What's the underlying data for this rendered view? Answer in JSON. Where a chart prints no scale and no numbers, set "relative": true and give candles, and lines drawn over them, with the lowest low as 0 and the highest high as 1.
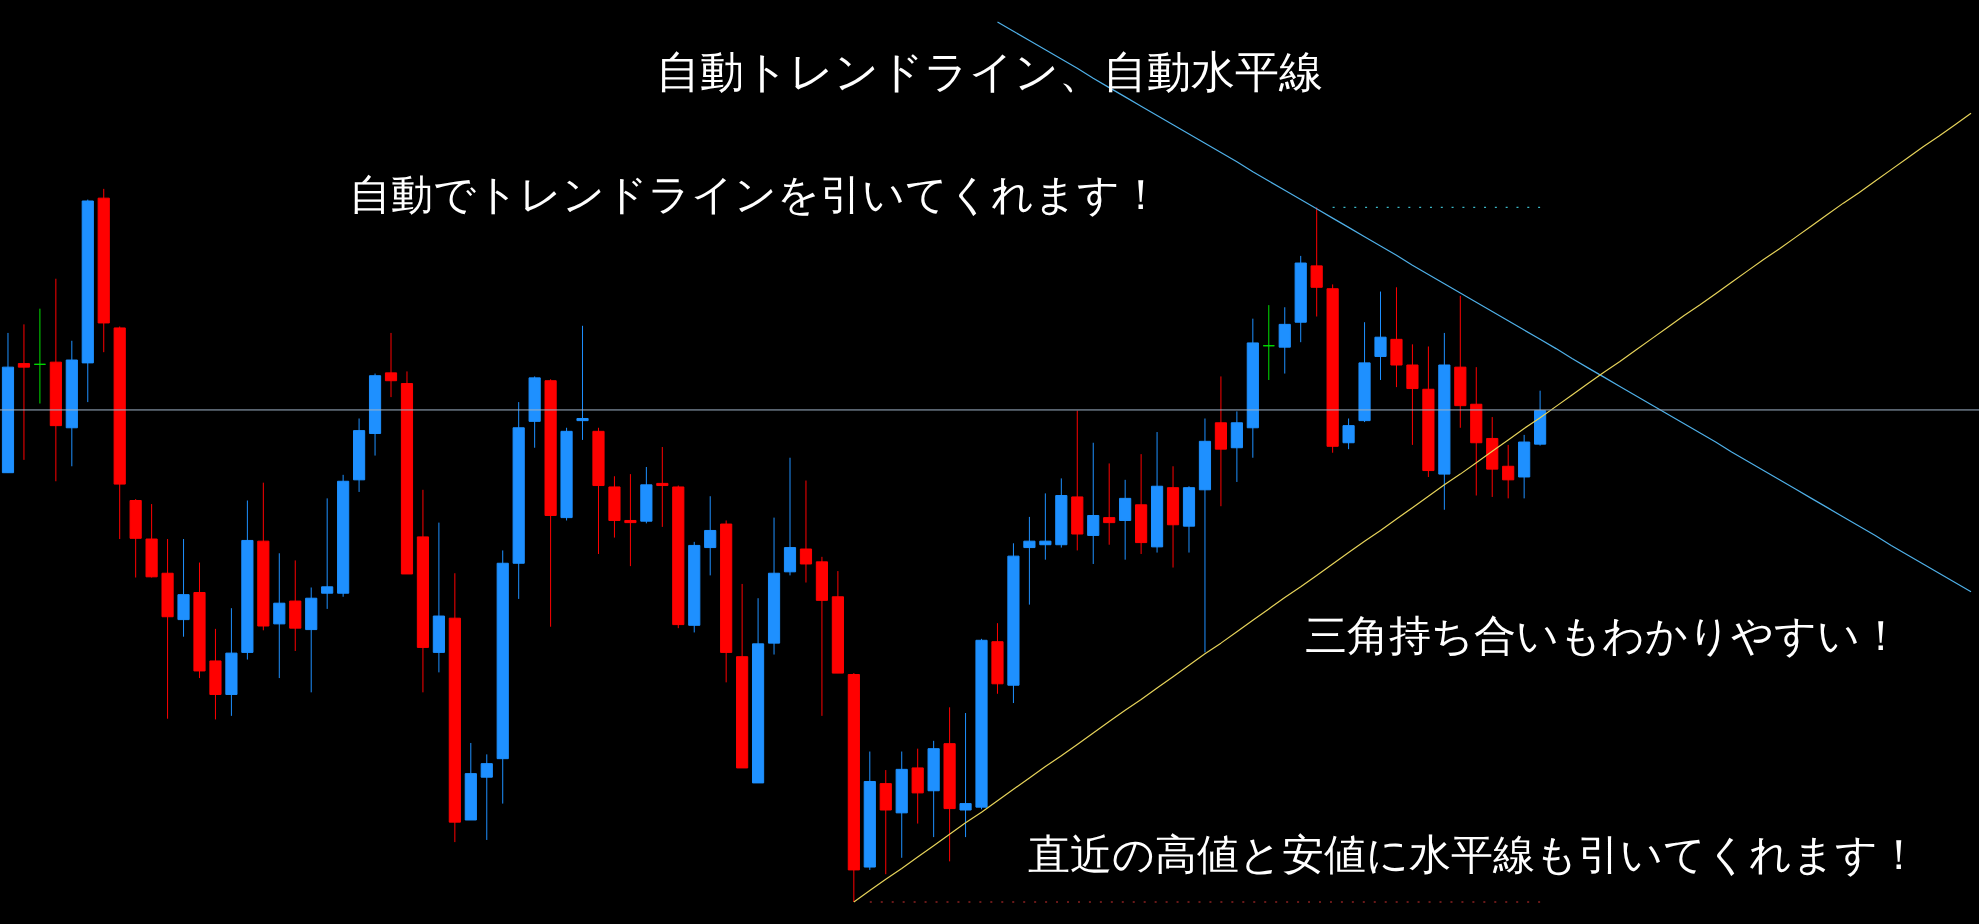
{
  "chart_data": {
    "type": "candlestick",
    "title": "自動トレンドライン、自動水平線",
    "relative": true,
    "annotations": [
      "自動でトレンドラインを引いてくれます！",
      "三角持ち合いもわかりやすい！",
      "直近の高値と安値に水平線も引いてくれます！"
    ],
    "categories": [
      null,
      null,
      null,
      null,
      null,
      null,
      null,
      null,
      null,
      null,
      null,
      null,
      null,
      null,
      null,
      null,
      null,
      null,
      null,
      null,
      null,
      null,
      null,
      null,
      null,
      null,
      null,
      null,
      null,
      null,
      null,
      null,
      null,
      null,
      null,
      null,
      null,
      null,
      null,
      null,
      null,
      null,
      null,
      null,
      null,
      null,
      null,
      null,
      null,
      null,
      null,
      null,
      null,
      null,
      null,
      null,
      null,
      null,
      null,
      null,
      null,
      null,
      null,
      null,
      null,
      null,
      null,
      null,
      null,
      null,
      null,
      null,
      null,
      null,
      null,
      null,
      null,
      null,
      null,
      null,
      null,
      null,
      null,
      null,
      null,
      null,
      null,
      null,
      null,
      null,
      null,
      null,
      null,
      null,
      null,
      null,
      null,
      null,
      null,
      null,
      null,
      null,
      null,
      null,
      null,
      null,
      null,
      null,
      null,
      null,
      null,
      null,
      null,
      null,
      null,
      null,
      null,
      null,
      null,
      null,
      null,
      null,
      null,
      null
    ],
    "ohlc": [
      [
        0.602,
        0.798,
        0.602,
        0.75
      ],
      [
        0.755,
        0.81,
        0.62,
        0.75
      ],
      [
        0.754,
        0.832,
        0.699,
        0.754
      ],
      [
        0.757,
        0.874,
        0.59,
        0.668
      ],
      [
        0.665,
        0.787,
        0.611,
        0.76
      ],
      [
        0.756,
        0.985,
        0.701,
        0.983
      ],
      [
        0.987,
        1,
        0.771,
        0.812
      ],
      [
        0.805,
        0.807,
        0.509,
        0.586
      ],
      [
        0.563,
        0.565,
        0.455,
        0.51
      ],
      [
        0.509,
        0.558,
        0.455,
        0.456
      ],
      [
        0.461,
        0.509,
        0.257,
        0.4
      ],
      [
        0.396,
        0.509,
        0.372,
        0.431
      ],
      [
        0.434,
        0.476,
        0.314,
        0.324
      ],
      [
        0.338,
        0.383,
        0.256,
        0.291
      ],
      [
        0.291,
        0.412,
        0.261,
        0.349
      ],
      [
        0.35,
        0.563,
        0.34,
        0.507
      ],
      [
        0.506,
        0.588,
        0.381,
        0.387
      ],
      [
        0.39,
        0.489,
        0.314,
        0.419
      ],
      [
        0.422,
        0.479,
        0.352,
        0.384
      ],
      [
        0.382,
        0.441,
        0.294,
        0.426
      ],
      [
        0.433,
        0.566,
        0.411,
        0.442
      ],
      [
        0.433,
        0.599,
        0.428,
        0.59
      ],
      [
        0.592,
        0.678,
        0.575,
        0.661
      ],
      [
        0.657,
        0.741,
        0.626,
        0.738
      ],
      [
        0.742,
        0.798,
        0.708,
        0.731
      ],
      [
        0.727,
        0.744,
        0.46,
        0.46
      ],
      [
        0.512,
        0.578,
        0.294,
        0.357
      ],
      [
        0.35,
        0.532,
        0.322,
        0.401
      ],
      [
        0.398,
        0.461,
        0.084,
        0.112
      ],
      [
        0.115,
        0.223,
        0.115,
        0.18
      ],
      [
        0.175,
        0.207,
        0.087,
        0.194
      ],
      [
        0.201,
        0.493,
        0.138,
        0.475
      ],
      [
        0.475,
        0.701,
        0.425,
        0.665
      ],
      [
        0.674,
        0.737,
        0.637,
        0.735
      ],
      [
        0.731,
        0.733,
        0.386,
        0.542
      ],
      [
        0.539,
        0.665,
        0.535,
        0.66
      ],
      [
        0.675,
        0.808,
        0.648,
        0.678
      ],
      [
        0.66,
        0.665,
        0.488,
        0.584
      ],
      [
        0.582,
        0.597,
        0.511,
        0.535
      ],
      [
        0.535,
        0.6,
        0.471,
        0.532
      ],
      [
        0.534,
        0.61,
        0.531,
        0.585
      ],
      [
        0.587,
        0.638,
        0.526,
        0.584
      ],
      [
        0.582,
        0.584,
        0.384,
        0.389
      ],
      [
        0.388,
        0.505,
        0.378,
        0.5
      ],
      [
        0.497,
        0.569,
        0.458,
        0.521
      ],
      [
        0.53,
        0.535,
        0.308,
        0.35
      ],
      [
        0.344,
        0.446,
        0.188,
        0.188
      ],
      [
        0.167,
        0.426,
        0.167,
        0.362
      ],
      [
        0.363,
        0.539,
        0.347,
        0.461
      ],
      [
        0.463,
        0.623,
        0.458,
        0.497
      ],
      [
        0.495,
        0.591,
        0.448,
        0.474
      ],
      [
        0.477,
        0.484,
        0.261,
        0.423
      ],
      [
        0.428,
        0.464,
        0.321,
        0.321
      ],
      [
        0.319,
        0.321,
        0,
        0.045
      ],
      [
        0.049,
        0.211,
        0.045,
        0.169
      ],
      [
        0.166,
        0.185,
        0.039,
        0.129
      ],
      [
        0.125,
        0.211,
        0.062,
        0.186
      ],
      [
        0.188,
        0.215,
        0.11,
        0.153
      ],
      [
        0.156,
        0.226,
        0.091,
        0.215
      ],
      [
        0.222,
        0.273,
        0.057,
        0.131
      ],
      [
        0.129,
        0.265,
        0.091,
        0.138
      ],
      [
        0.133,
        0.369,
        0.13,
        0.367
      ],
      [
        0.365,
        0.391,
        0.292,
        0.306
      ],
      [
        0.304,
        0.503,
        0.279,
        0.485
      ],
      [
        0.497,
        0.54,
        0.417,
        0.506
      ],
      [
        0.501,
        0.573,
        0.48,
        0.506
      ],
      [
        0.501,
        0.594,
        0.497,
        0.57
      ],
      [
        0.568,
        0.689,
        0.493,
        0.516
      ],
      [
        0.514,
        0.644,
        0.474,
        0.542
      ],
      [
        0.539,
        0.615,
        0.501,
        0.532
      ],
      [
        0.535,
        0.592,
        0.48,
        0.566
      ],
      [
        0.557,
        0.628,
        0.488,
        0.504
      ],
      [
        0.498,
        0.659,
        0.49,
        0.583
      ],
      [
        0.581,
        0.611,
        0.469,
        0.529
      ],
      [
        0.527,
        0.583,
        0.49,
        0.581
      ],
      [
        0.578,
        0.678,
        0.35,
        0.646
      ],
      [
        0.672,
        0.737,
        0.555,
        0.635
      ],
      [
        0.637,
        0.688,
        0.589,
        0.672
      ],
      [
        0.665,
        0.818,
        0.623,
        0.784
      ],
      [
        0.78,
        0.837,
        0.732,
        0.78
      ],
      [
        0.778,
        0.834,
        0.741,
        0.81
      ],
      [
        0.813,
        0.906,
        0.785,
        0.896
      ],
      [
        0.892,
        0.974,
        0.821,
        0.862
      ],
      [
        0.86,
        0.866,
        0.63,
        0.639
      ],
      [
        0.644,
        0.678,
        0.635,
        0.668
      ],
      [
        0.675,
        0.813,
        0.673,
        0.756
      ],
      [
        0.765,
        0.856,
        0.732,
        0.792
      ],
      [
        0.789,
        0.862,
        0.722,
        0.753
      ],
      [
        0.753,
        0.782,
        0.641,
        0.72
      ],
      [
        0.719,
        0.779,
        0.596,
        0.605
      ],
      [
        0.6,
        0.798,
        0.55,
        0.753
      ],
      [
        0.75,
        0.85,
        0.665,
        0.696
      ],
      [
        0.698,
        0.75,
        0.57,
        0.644
      ],
      [
        0.65,
        0.68,
        0.568,
        0.607
      ],
      [
        0.611,
        0.641,
        0.566,
        0.592
      ],
      [
        0.596,
        0.655,
        0.566,
        0.645
      ],
      [
        0.642,
        0.717,
        0.64,
        0.689
      ],
      null,
      null,
      null,
      null,
      null,
      null,
      null,
      null,
      null,
      null,
      null,
      null,
      null,
      null,
      null,
      null,
      null,
      null,
      null,
      null,
      null,
      null,
      null,
      null,
      null,
      null,
      null
    ],
    "colors": [
      "#1e90ff",
      "#ff0000",
      "#00e000",
      "#ff0000",
      "#1e90ff",
      "#1e90ff",
      "#ff0000",
      "#ff0000",
      "#ff0000",
      "#ff0000",
      "#ff0000",
      "#1e90ff",
      "#ff0000",
      "#ff0000",
      "#1e90ff",
      "#1e90ff",
      "#ff0000",
      "#1e90ff",
      "#ff0000",
      "#1e90ff",
      "#1e90ff",
      "#1e90ff",
      "#1e90ff",
      "#1e90ff",
      "#ff0000",
      "#ff0000",
      "#ff0000",
      "#1e90ff",
      "#ff0000",
      "#1e90ff",
      "#1e90ff",
      "#1e90ff",
      "#1e90ff",
      "#1e90ff",
      "#ff0000",
      "#1e90ff",
      "#1e90ff",
      "#ff0000",
      "#ff0000",
      "#ff0000",
      "#1e90ff",
      "#ff0000",
      "#ff0000",
      "#1e90ff",
      "#1e90ff",
      "#ff0000",
      "#ff0000",
      "#1e90ff",
      "#1e90ff",
      "#1e90ff",
      "#ff0000",
      "#ff0000",
      "#ff0000",
      "#ff0000",
      "#1e90ff",
      "#ff0000",
      "#1e90ff",
      "#ff0000",
      "#1e90ff",
      "#ff0000",
      "#1e90ff",
      "#1e90ff",
      "#ff0000",
      "#1e90ff",
      "#1e90ff",
      "#1e90ff",
      "#1e90ff",
      "#ff0000",
      "#1e90ff",
      "#ff0000",
      "#1e90ff",
      "#ff0000",
      "#1e90ff",
      "#ff0000",
      "#1e90ff",
      "#1e90ff",
      "#ff0000",
      "#1e90ff",
      "#1e90ff",
      "#00e000",
      "#1e90ff",
      "#1e90ff",
      "#ff0000",
      "#ff0000",
      "#1e90ff",
      "#1e90ff",
      "#1e90ff",
      "#ff0000",
      "#ff0000",
      "#ff0000",
      "#1e90ff",
      "#ff0000",
      "#ff0000",
      "#ff0000",
      "#ff0000",
      "#1e90ff",
      "#1e90ff",
      null,
      null,
      null,
      null,
      null,
      null,
      null,
      null,
      null,
      null,
      null,
      null,
      null,
      null,
      null,
      null,
      null,
      null,
      null,
      null,
      null,
      null,
      null,
      null,
      null,
      null,
      null
    ],
    "series": [
      {
        "type": "line",
        "color": "#4fb0e8",
        "line_style": "solid",
        "values": [
          null,
          null,
          null,
          null,
          null,
          null,
          null,
          null,
          null,
          null,
          null,
          null,
          null,
          null,
          null,
          null,
          null,
          null,
          null,
          null,
          null,
          null,
          null,
          null,
          null,
          null,
          null,
          null,
          null,
          null,
          null,
          null,
          null,
          null,
          null,
          null,
          null,
          null,
          null,
          null,
          null,
          null,
          null,
          null,
          null,
          null,
          null,
          null,
          null,
          null,
          null,
          null,
          null,
          null,
          null,
          null,
          null,
          null,
          null,
          null,
          null,
          null,
          1.234,
          1.221,
          1.208,
          1.195,
          1.182,
          1.169,
          1.155,
          1.142,
          1.129,
          1.116,
          1.103,
          1.09,
          1.077,
          1.064,
          1.051,
          1.038,
          1.024,
          1.011,
          0.998,
          0.985,
          0.972,
          0.959,
          0.946,
          0.933,
          0.92,
          0.907,
          0.893,
          0.88,
          0.867,
          0.854,
          0.841,
          0.828,
          0.815,
          0.802,
          0.789,
          0.776,
          0.762,
          0.749,
          0.736,
          0.723,
          0.71,
          0.697,
          0.684,
          0.671,
          0.658,
          0.645,
          0.631,
          0.618,
          0.605,
          0.592,
          0.579,
          0.566,
          0.553,
          0.54,
          0.527,
          0.514,
          0.5,
          0.487,
          0.474,
          0.461,
          0.448,
          0.435
        ]
      },
      {
        "type": "line",
        "color": "#e6d35a",
        "line_style": "solid",
        "values": [
          null,
          null,
          null,
          null,
          null,
          null,
          null,
          null,
          null,
          null,
          null,
          null,
          null,
          null,
          null,
          null,
          null,
          null,
          null,
          null,
          null,
          null,
          null,
          null,
          null,
          null,
          null,
          null,
          null,
          null,
          null,
          null,
          null,
          null,
          null,
          null,
          null,
          null,
          null,
          null,
          null,
          null,
          null,
          null,
          null,
          null,
          null,
          null,
          null,
          null,
          null,
          null,
          null,
          0,
          0.016,
          0.032,
          0.047,
          0.063,
          0.079,
          0.095,
          0.111,
          0.126,
          0.142,
          0.158,
          0.174,
          0.19,
          0.205,
          0.221,
          0.237,
          0.253,
          0.269,
          0.284,
          0.3,
          0.316,
          0.332,
          0.348,
          0.363,
          0.379,
          0.395,
          0.411,
          0.427,
          0.442,
          0.458,
          0.474,
          0.49,
          0.506,
          0.521,
          0.537,
          0.553,
          0.569,
          0.585,
          0.6,
          0.616,
          0.632,
          0.648,
          0.664,
          0.679,
          0.695,
          0.711,
          0.727,
          0.743,
          0.758,
          0.774,
          0.79,
          0.806,
          0.822,
          0.837,
          0.853,
          0.869,
          0.885,
          0.901,
          0.916,
          0.932,
          0.948,
          0.964,
          0.98,
          0.995,
          1.011,
          1.027,
          1.043,
          1.059,
          1.074,
          1.09,
          1.106
        ]
      },
      {
        "type": "line",
        "color": "#3ab8c8",
        "line_style": "dotted",
        "values": [
          null,
          null,
          null,
          null,
          null,
          null,
          null,
          null,
          null,
          null,
          null,
          null,
          null,
          null,
          null,
          null,
          null,
          null,
          null,
          null,
          null,
          null,
          null,
          null,
          null,
          null,
          null,
          null,
          null,
          null,
          null,
          null,
          null,
          null,
          null,
          null,
          null,
          null,
          null,
          null,
          null,
          null,
          null,
          null,
          null,
          null,
          null,
          null,
          null,
          null,
          null,
          null,
          null,
          null,
          null,
          null,
          null,
          null,
          null,
          null,
          null,
          null,
          null,
          null,
          null,
          null,
          null,
          null,
          null,
          null,
          null,
          null,
          null,
          null,
          null,
          null,
          null,
          null,
          null,
          null,
          null,
          null,
          null,
          0.974,
          0.974,
          0.974,
          0.974,
          0.974,
          0.974,
          0.974,
          0.974,
          0.974,
          0.974,
          0.974,
          0.974,
          0.974,
          0.974,
          null,
          null,
          null,
          null,
          null,
          null,
          null,
          null,
          null,
          null,
          null,
          null,
          null,
          null,
          null,
          null,
          null,
          null,
          null,
          null,
          null,
          null,
          null,
          null,
          null,
          null,
          null
        ]
      },
      {
        "type": "line",
        "color": "#d03030",
        "line_style": "dotted",
        "values": [
          null,
          null,
          null,
          null,
          null,
          null,
          null,
          null,
          null,
          null,
          null,
          null,
          null,
          null,
          null,
          null,
          null,
          null,
          null,
          null,
          null,
          null,
          null,
          null,
          null,
          null,
          null,
          null,
          null,
          null,
          null,
          null,
          null,
          null,
          null,
          null,
          null,
          null,
          null,
          null,
          null,
          null,
          null,
          null,
          null,
          null,
          null,
          null,
          null,
          null,
          null,
          null,
          null,
          null,
          0,
          0,
          0,
          0,
          0,
          0,
          0,
          0,
          0,
          0,
          0,
          0,
          0,
          0,
          0,
          0,
          0,
          0,
          0,
          0,
          0,
          0,
          0,
          0,
          0,
          0,
          0,
          0,
          0,
          0,
          0,
          0,
          0,
          0,
          0,
          0,
          0,
          0,
          0,
          0,
          0,
          0,
          0,
          null,
          null,
          null,
          null,
          null,
          null,
          null,
          null,
          null,
          null,
          null,
          null,
          null,
          null,
          null,
          null,
          null,
          null,
          null,
          null,
          null,
          null,
          null,
          null,
          null,
          null,
          null
        ]
      }
    ],
    "ref_lines": [
      {
        "axis": "y",
        "value": 0.69,
        "color": "#9fb3c8"
      }
    ]
  }
}
